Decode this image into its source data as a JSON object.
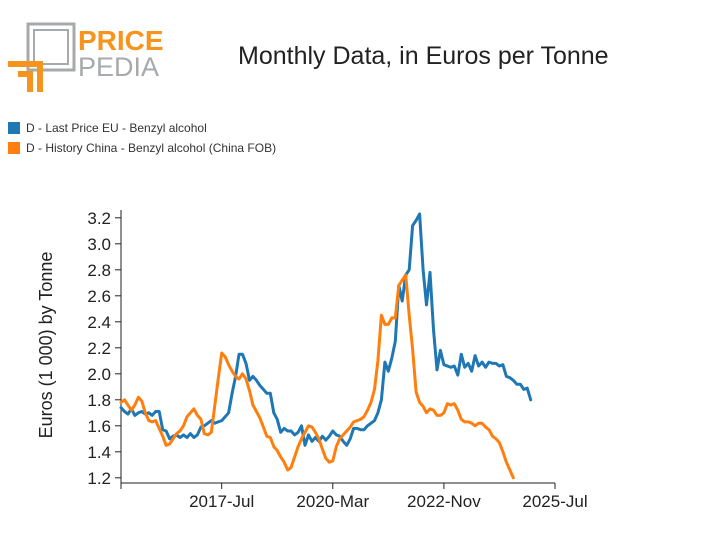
{
  "header": {
    "logo_top": "PRICE",
    "logo_bottom": "PEDIA",
    "title": "Monthly Data, in Euros per Tonne"
  },
  "colors": {
    "eu": "#1f77b4",
    "china": "#ff7f0e",
    "logo_orange": "#f7941d",
    "logo_gray": "#a7a9ac"
  },
  "chart_data": {
    "type": "line",
    "ylabel": "Euros (1 000) by Tonne",
    "ylim": [
      1.16,
      3.26
    ],
    "yticks": [
      1.2,
      1.4,
      1.6,
      1.8,
      2.0,
      2.2,
      2.4,
      2.6,
      2.8,
      3.0,
      3.2
    ],
    "ytick_labels": [
      "1.2",
      "1.4",
      "1.6",
      "1.8",
      "2.0",
      "2.2",
      "2.4",
      "2.6",
      "2.8",
      "3.0",
      "3.2"
    ],
    "xlim": [
      "2015-02",
      "2025-07"
    ],
    "xticks": [
      "2017-07",
      "2020-03",
      "2022-11",
      "2025-07"
    ],
    "xtick_labels": [
      "2017-Jul",
      "2020-Mar",
      "2022-Nov",
      "2025-Jul"
    ],
    "grid": false,
    "legend_position": "top-left",
    "series": [
      {
        "name": "D - Last Price EU - Benzyl alcohol",
        "color": "#1f77b4",
        "points": [
          [
            "2015-02",
            1.74
          ],
          [
            "2015-03",
            1.71
          ],
          [
            "2015-04",
            1.69
          ],
          [
            "2015-05",
            1.73
          ],
          [
            "2015-06",
            1.68
          ],
          [
            "2015-07",
            1.7
          ],
          [
            "2015-08",
            1.71
          ],
          [
            "2015-09",
            1.69
          ],
          [
            "2015-10",
            1.7
          ],
          [
            "2015-11",
            1.68
          ],
          [
            "2015-12",
            1.71
          ],
          [
            "2016-01",
            1.71
          ],
          [
            "2016-02",
            1.57
          ],
          [
            "2016-03",
            1.56
          ],
          [
            "2016-04",
            1.5
          ],
          [
            "2016-05",
            1.52
          ],
          [
            "2016-06",
            1.53
          ],
          [
            "2016-07",
            1.51
          ],
          [
            "2016-08",
            1.53
          ],
          [
            "2016-09",
            1.51
          ],
          [
            "2016-10",
            1.54
          ],
          [
            "2016-11",
            1.51
          ],
          [
            "2016-12",
            1.53
          ],
          [
            "2017-01",
            1.59
          ],
          [
            "2017-02",
            1.6
          ],
          [
            "2017-03",
            1.62
          ],
          [
            "2017-04",
            1.64
          ],
          [
            "2017-05",
            1.62
          ],
          [
            "2017-06",
            1.63
          ],
          [
            "2017-07",
            1.64
          ],
          [
            "2017-08",
            1.67
          ],
          [
            "2017-09",
            1.7
          ],
          [
            "2017-10",
            1.85
          ],
          [
            "2017-11",
            1.98
          ],
          [
            "2017-12",
            2.15
          ],
          [
            "2018-01",
            2.15
          ],
          [
            "2018-02",
            2.08
          ],
          [
            "2018-03",
            1.95
          ],
          [
            "2018-04",
            1.98
          ],
          [
            "2018-05",
            1.95
          ],
          [
            "2018-06",
            1.91
          ],
          [
            "2018-07",
            1.88
          ],
          [
            "2018-08",
            1.85
          ],
          [
            "2018-09",
            1.85
          ],
          [
            "2018-10",
            1.7
          ],
          [
            "2018-11",
            1.65
          ],
          [
            "2018-12",
            1.55
          ],
          [
            "2019-01",
            1.58
          ],
          [
            "2019-02",
            1.56
          ],
          [
            "2019-03",
            1.56
          ],
          [
            "2019-04",
            1.53
          ],
          [
            "2019-05",
            1.55
          ],
          [
            "2019-06",
            1.6
          ],
          [
            "2019-07",
            1.45
          ],
          [
            "2019-08",
            1.53
          ],
          [
            "2019-09",
            1.48
          ],
          [
            "2019-10",
            1.51
          ],
          [
            "2019-11",
            1.48
          ],
          [
            "2019-12",
            1.52
          ],
          [
            "2020-01",
            1.49
          ],
          [
            "2020-02",
            1.52
          ],
          [
            "2020-03",
            1.56
          ],
          [
            "2020-04",
            1.53
          ],
          [
            "2020-05",
            1.52
          ],
          [
            "2020-06",
            1.48
          ],
          [
            "2020-07",
            1.45
          ],
          [
            "2020-08",
            1.5
          ],
          [
            "2020-09",
            1.58
          ],
          [
            "2020-10",
            1.58
          ],
          [
            "2020-11",
            1.57
          ],
          [
            "2020-12",
            1.57
          ],
          [
            "2021-01",
            1.6
          ],
          [
            "2021-02",
            1.62
          ],
          [
            "2021-03",
            1.64
          ],
          [
            "2021-04",
            1.7
          ],
          [
            "2021-05",
            1.8
          ],
          [
            "2021-06",
            2.09
          ],
          [
            "2021-07",
            2.02
          ],
          [
            "2021-08",
            2.12
          ],
          [
            "2021-09",
            2.25
          ],
          [
            "2021-10",
            2.68
          ],
          [
            "2021-11",
            2.56
          ],
          [
            "2021-12",
            2.76
          ],
          [
            "2022-01",
            2.8
          ],
          [
            "2022-02",
            3.14
          ],
          [
            "2022-03",
            3.18
          ],
          [
            "2022-04",
            3.23
          ],
          [
            "2022-05",
            2.8
          ],
          [
            "2022-06",
            2.53
          ],
          [
            "2022-07",
            2.78
          ],
          [
            "2022-08",
            2.34
          ],
          [
            "2022-09",
            2.03
          ],
          [
            "2022-10",
            2.18
          ],
          [
            "2022-11",
            2.07
          ],
          [
            "2022-12",
            2.06
          ],
          [
            "2023-01",
            2.05
          ],
          [
            "2023-02",
            2.06
          ],
          [
            "2023-03",
            1.99
          ],
          [
            "2023-04",
            2.15
          ],
          [
            "2023-05",
            2.05
          ],
          [
            "2023-06",
            2.08
          ],
          [
            "2023-07",
            2.02
          ],
          [
            "2023-08",
            2.14
          ],
          [
            "2023-09",
            2.06
          ],
          [
            "2023-10",
            2.09
          ],
          [
            "2023-11",
            2.05
          ],
          [
            "2023-12",
            2.09
          ],
          [
            "2024-01",
            2.08
          ],
          [
            "2024-02",
            2.08
          ],
          [
            "2024-03",
            2.06
          ],
          [
            "2024-04",
            2.07
          ],
          [
            "2024-05",
            1.98
          ],
          [
            "2024-06",
            1.97
          ],
          [
            "2024-07",
            1.95
          ],
          [
            "2024-08",
            1.92
          ],
          [
            "2024-09",
            1.92
          ],
          [
            "2024-10",
            1.88
          ],
          [
            "2024-11",
            1.89
          ],
          [
            "2024-12",
            1.8
          ]
        ]
      },
      {
        "name": "D - History China - Benzyl alcohol (China FOB)",
        "color": "#ff7f0e",
        "points": [
          [
            "2015-02",
            1.78
          ],
          [
            "2015-03",
            1.8
          ],
          [
            "2015-04",
            1.76
          ],
          [
            "2015-05",
            1.72
          ],
          [
            "2015-06",
            1.76
          ],
          [
            "2015-07",
            1.82
          ],
          [
            "2015-08",
            1.79
          ],
          [
            "2015-09",
            1.7
          ],
          [
            "2015-10",
            1.64
          ],
          [
            "2015-11",
            1.63
          ],
          [
            "2015-12",
            1.64
          ],
          [
            "2016-01",
            1.58
          ],
          [
            "2016-02",
            1.52
          ],
          [
            "2016-03",
            1.45
          ],
          [
            "2016-04",
            1.46
          ],
          [
            "2016-05",
            1.5
          ],
          [
            "2016-06",
            1.54
          ],
          [
            "2016-07",
            1.56
          ],
          [
            "2016-08",
            1.6
          ],
          [
            "2016-09",
            1.67
          ],
          [
            "2016-10",
            1.7
          ],
          [
            "2016-11",
            1.73
          ],
          [
            "2016-12",
            1.68
          ],
          [
            "2017-01",
            1.65
          ],
          [
            "2017-02",
            1.54
          ],
          [
            "2017-03",
            1.53
          ],
          [
            "2017-04",
            1.55
          ],
          [
            "2017-05",
            1.75
          ],
          [
            "2017-06",
            1.96
          ],
          [
            "2017-07",
            2.16
          ],
          [
            "2017-08",
            2.13
          ],
          [
            "2017-09",
            2.07
          ],
          [
            "2017-10",
            2.02
          ],
          [
            "2017-11",
            1.98
          ],
          [
            "2017-12",
            1.96
          ],
          [
            "2018-01",
            2.0
          ],
          [
            "2018-02",
            1.96
          ],
          [
            "2018-03",
            1.87
          ],
          [
            "2018-04",
            1.76
          ],
          [
            "2018-05",
            1.71
          ],
          [
            "2018-06",
            1.66
          ],
          [
            "2018-07",
            1.59
          ],
          [
            "2018-08",
            1.52
          ],
          [
            "2018-09",
            1.51
          ],
          [
            "2018-10",
            1.44
          ],
          [
            "2018-11",
            1.41
          ],
          [
            "2018-12",
            1.36
          ],
          [
            "2019-01",
            1.32
          ],
          [
            "2019-02",
            1.26
          ],
          [
            "2019-03",
            1.28
          ],
          [
            "2019-04",
            1.36
          ],
          [
            "2019-05",
            1.44
          ],
          [
            "2019-06",
            1.5
          ],
          [
            "2019-07",
            1.55
          ],
          [
            "2019-08",
            1.6
          ],
          [
            "2019-09",
            1.59
          ],
          [
            "2019-10",
            1.55
          ],
          [
            "2019-11",
            1.5
          ],
          [
            "2019-12",
            1.42
          ],
          [
            "2020-01",
            1.35
          ],
          [
            "2020-02",
            1.32
          ],
          [
            "2020-03",
            1.33
          ],
          [
            "2020-04",
            1.44
          ],
          [
            "2020-05",
            1.5
          ],
          [
            "2020-06",
            1.53
          ],
          [
            "2020-07",
            1.56
          ],
          [
            "2020-08",
            1.59
          ],
          [
            "2020-09",
            1.63
          ],
          [
            "2020-10",
            1.64
          ],
          [
            "2020-11",
            1.65
          ],
          [
            "2020-12",
            1.67
          ],
          [
            "2021-01",
            1.72
          ],
          [
            "2021-02",
            1.78
          ],
          [
            "2021-03",
            1.88
          ],
          [
            "2021-04",
            2.1
          ],
          [
            "2021-05",
            2.45
          ],
          [
            "2021-06",
            2.38
          ],
          [
            "2021-07",
            2.38
          ],
          [
            "2021-08",
            2.43
          ],
          [
            "2021-09",
            2.43
          ],
          [
            "2021-10",
            2.68
          ],
          [
            "2021-11",
            2.72
          ],
          [
            "2021-12",
            2.76
          ],
          [
            "2022-01",
            2.45
          ],
          [
            "2022-02",
            2.19
          ],
          [
            "2022-03",
            1.86
          ],
          [
            "2022-04",
            1.78
          ],
          [
            "2022-05",
            1.75
          ],
          [
            "2022-06",
            1.7
          ],
          [
            "2022-07",
            1.73
          ],
          [
            "2022-08",
            1.72
          ],
          [
            "2022-09",
            1.68
          ],
          [
            "2022-10",
            1.68
          ],
          [
            "2022-11",
            1.7
          ],
          [
            "2022-12",
            1.77
          ],
          [
            "2023-01",
            1.76
          ],
          [
            "2023-02",
            1.77
          ],
          [
            "2023-03",
            1.72
          ],
          [
            "2023-04",
            1.65
          ],
          [
            "2023-05",
            1.63
          ],
          [
            "2023-06",
            1.63
          ],
          [
            "2023-07",
            1.62
          ],
          [
            "2023-08",
            1.6
          ],
          [
            "2023-09",
            1.62
          ],
          [
            "2023-10",
            1.62
          ],
          [
            "2023-11",
            1.59
          ],
          [
            "2023-12",
            1.57
          ],
          [
            "2024-01",
            1.52
          ],
          [
            "2024-02",
            1.5
          ],
          [
            "2024-03",
            1.47
          ],
          [
            "2024-04",
            1.4
          ],
          [
            "2024-05",
            1.32
          ],
          [
            "2024-06",
            1.26
          ],
          [
            "2024-07",
            1.2
          ]
        ]
      }
    ]
  }
}
